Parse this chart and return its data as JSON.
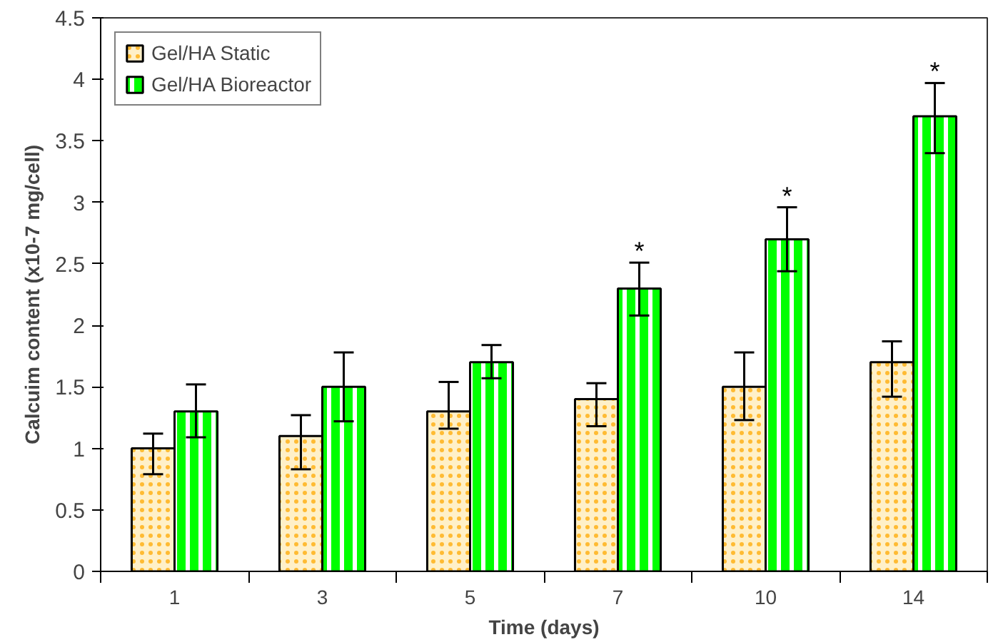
{
  "chart_data": {
    "type": "bar",
    "xlabel": "Time (days)",
    "ylabel": "Calcuim content (x10-7 mg/cell)",
    "categories": [
      "1",
      "3",
      "5",
      "7",
      "10",
      "14"
    ],
    "series": [
      {
        "name": "Gel/HA Static",
        "color": "#fff0c8",
        "values": [
          1.0,
          1.1,
          1.3,
          1.4,
          1.5,
          1.7
        ],
        "errors": [
          [
            0.79,
            1.12
          ],
          [
            0.83,
            1.27
          ],
          [
            1.16,
            1.54
          ],
          [
            1.18,
            1.53
          ],
          [
            1.23,
            1.78
          ],
          [
            1.42,
            1.87
          ]
        ]
      },
      {
        "name": "Gel/HA Bioreactor",
        "color": "#00ff00",
        "values": [
          1.3,
          1.5,
          1.7,
          2.3,
          2.7,
          3.7
        ],
        "value_labels": [
          null,
          null,
          null,
          "*",
          "*",
          "*"
        ],
        "errors": [
          [
            1.09,
            1.52
          ],
          [
            1.22,
            1.78
          ],
          [
            1.57,
            1.84
          ],
          [
            2.08,
            2.51
          ],
          [
            2.44,
            2.96
          ],
          [
            3.4,
            3.97
          ]
        ]
      }
    ],
    "ylim": [
      0,
      4.5
    ],
    "yticks": [
      0,
      0.5,
      1,
      1.5,
      2,
      2.5,
      3,
      3.5,
      4,
      4.5
    ],
    "grid": false,
    "legend": "top left"
  }
}
